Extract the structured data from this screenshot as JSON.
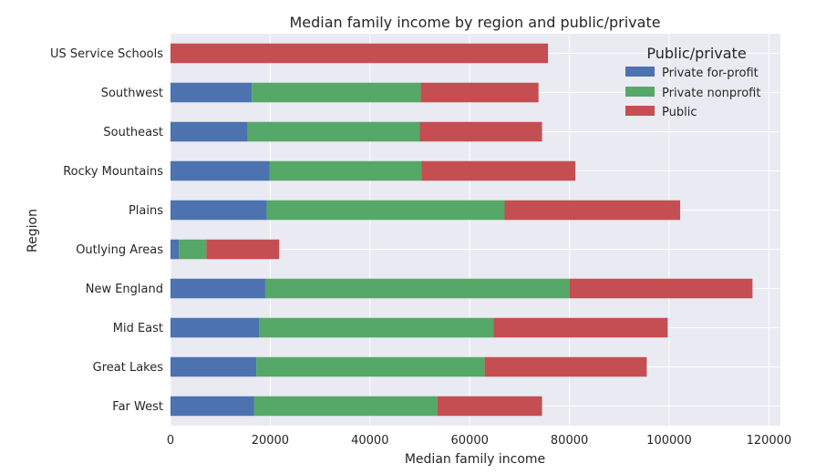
{
  "chart_data": {
    "type": "bar",
    "orientation": "horizontal",
    "stacked": true,
    "title": "Median family income by region and public/private",
    "xlabel": "Median family income",
    "ylabel": "Region",
    "xlim": [
      0,
      122000
    ],
    "xticks": [
      0,
      20000,
      40000,
      60000,
      80000,
      100000,
      120000
    ],
    "xtick_labels": [
      "0",
      "20000",
      "40000",
      "60000",
      "80000",
      "100000",
      "120000"
    ],
    "grid": true,
    "legend_title": "Public/private",
    "legend_position": "top-right",
    "categories": [
      "Far West",
      "Great Lakes",
      "Mid East",
      "New England",
      "Outlying Areas",
      "Plains",
      "Rocky Mountains",
      "Southeast",
      "Southwest",
      "US Service Schools"
    ],
    "series": [
      {
        "name": "Private for-profit",
        "color": "#4c72b0",
        "values": [
          16800,
          17200,
          17800,
          19000,
          1700,
          19300,
          19900,
          15500,
          16300,
          0
        ]
      },
      {
        "name": "Private nonprofit",
        "color": "#55a868",
        "values": [
          36700,
          45800,
          47000,
          61000,
          5500,
          47700,
          30400,
          34500,
          33900,
          0
        ]
      },
      {
        "name": "Public",
        "color": "#c44e52",
        "values": [
          21000,
          32500,
          34900,
          36700,
          14600,
          35200,
          30900,
          24500,
          23600,
          75700
        ]
      }
    ]
  }
}
